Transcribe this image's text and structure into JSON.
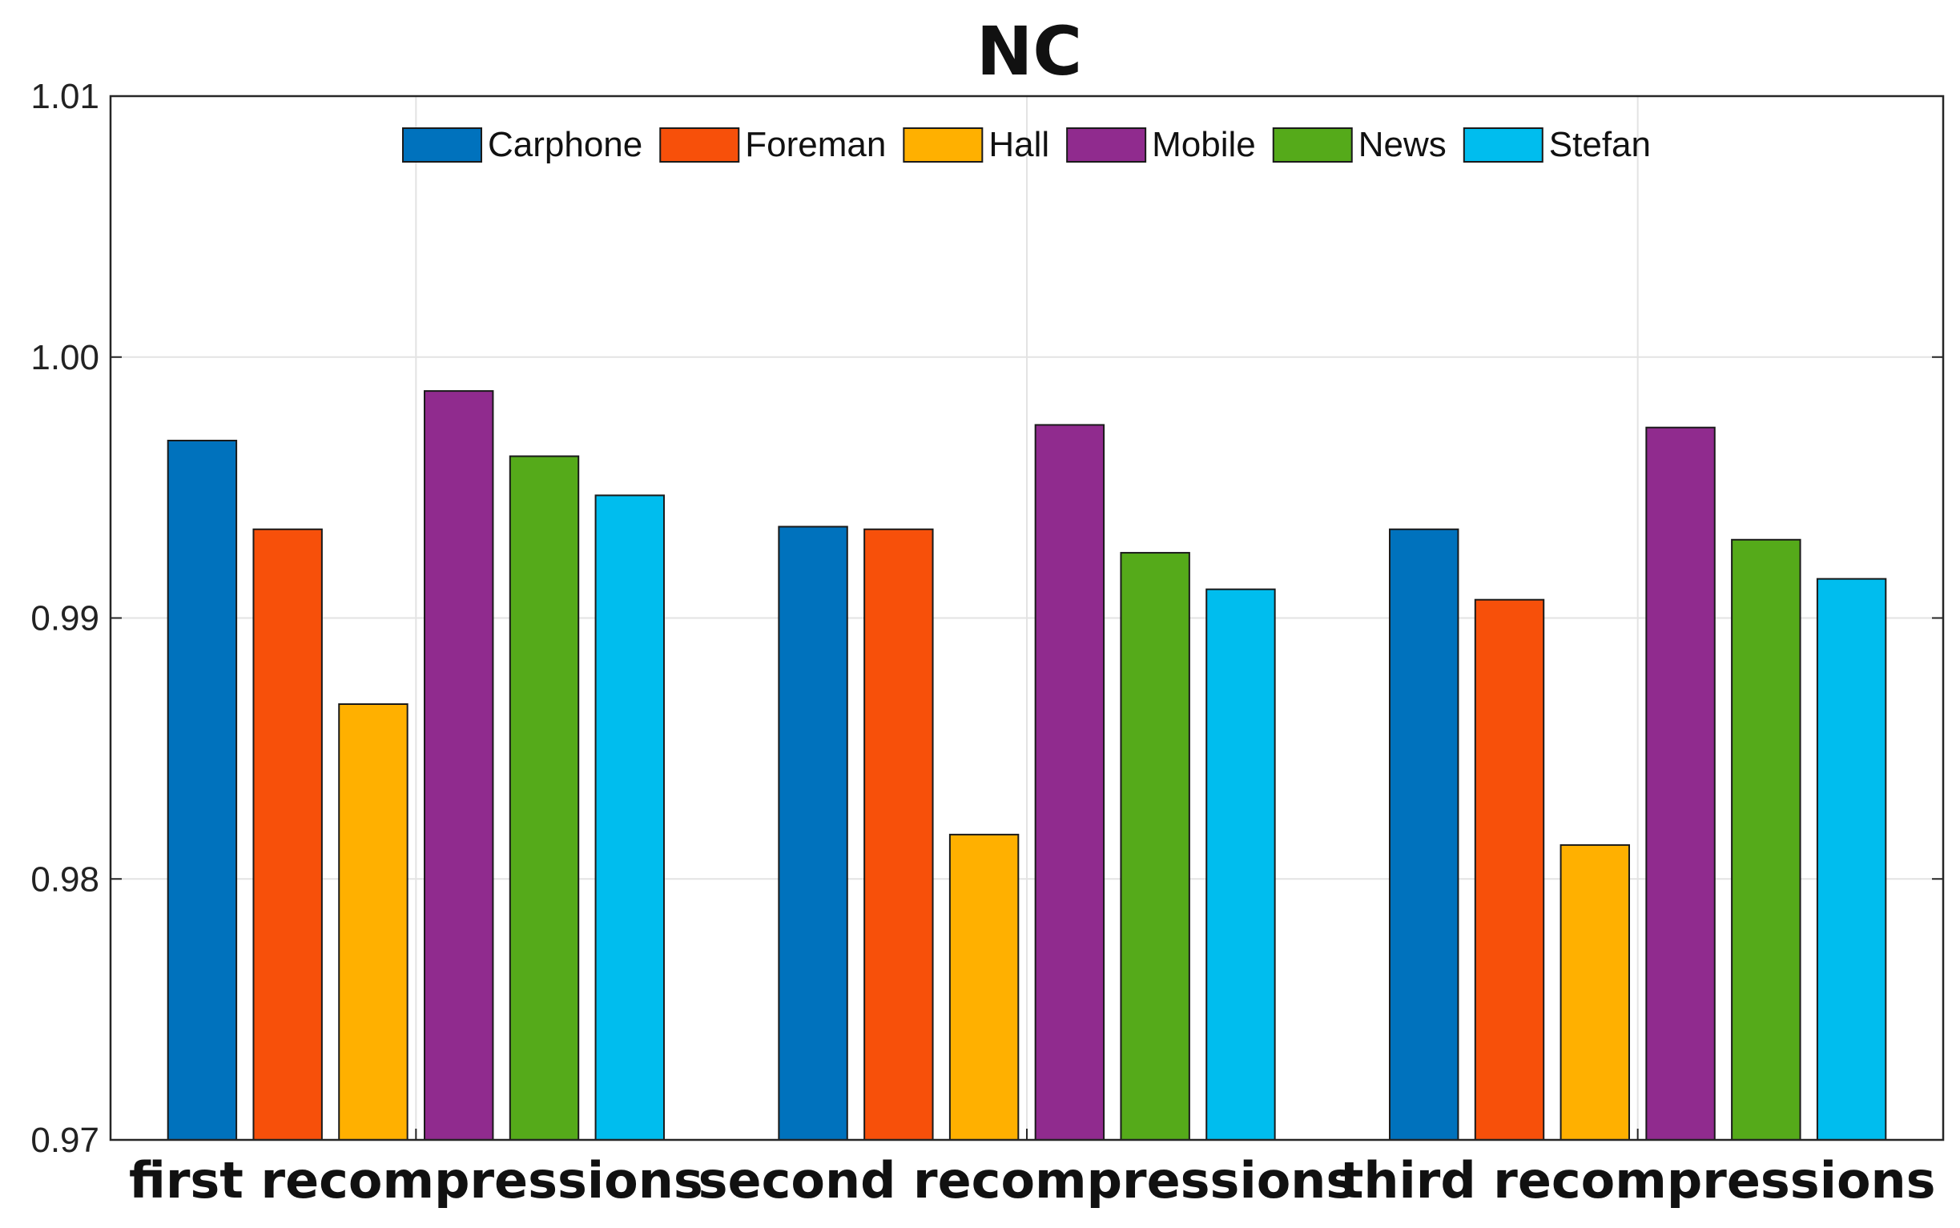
{
  "chart_data": {
    "type": "bar",
    "title": "NC",
    "xlabel": "",
    "ylabel": "",
    "ylim": [
      0.97,
      1.01
    ],
    "yticks": [
      "0.97",
      "0.98",
      "0.99",
      "1.00",
      "1.01"
    ],
    "grid": true,
    "legend_position": "top-center",
    "categories": [
      "first recompressions",
      "second recompressions",
      "third recompressions"
    ],
    "series": [
      {
        "name": "Carphone",
        "color": "#0072BD",
        "values": [
          0.9968,
          0.9935,
          0.9934
        ]
      },
      {
        "name": "Foreman",
        "color": "#F7500A",
        "values": [
          0.9934,
          0.9934,
          0.9907
        ]
      },
      {
        "name": "Hall",
        "color": "#FFB000",
        "values": [
          0.9867,
          0.9817,
          0.9813
        ]
      },
      {
        "name": "Mobile",
        "color": "#902B8E",
        "values": [
          0.9987,
          0.9974,
          0.9973
        ]
      },
      {
        "name": "News",
        "color": "#55AA1A",
        "values": [
          0.9962,
          0.9925,
          0.993
        ]
      },
      {
        "name": "Stefan",
        "color": "#00BDEE",
        "values": [
          0.9947,
          0.9911,
          0.9915
        ]
      }
    ]
  }
}
